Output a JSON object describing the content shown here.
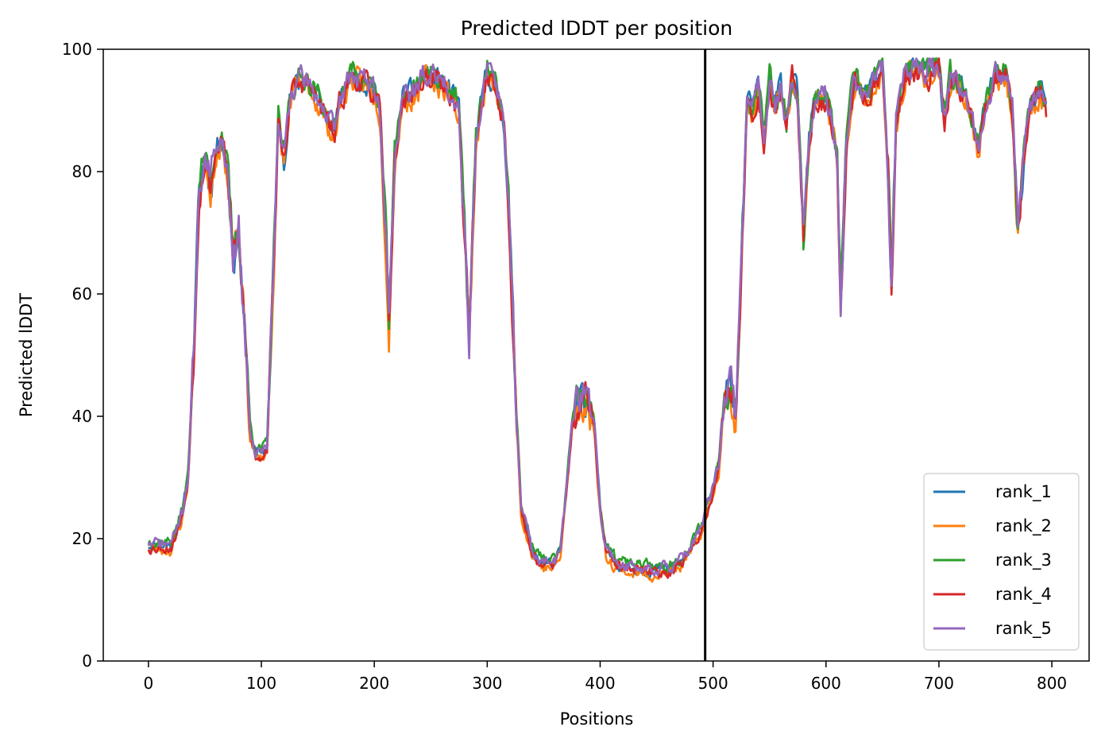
{
  "chart_data": {
    "type": "line",
    "title": "Predicted lDDT per position",
    "xlabel": "Positions",
    "ylabel": "Predicted lDDT",
    "xlim": [
      -40,
      833
    ],
    "ylim": [
      0,
      100
    ],
    "xticks": [
      0,
      100,
      200,
      300,
      400,
      500,
      600,
      700,
      800
    ],
    "yticks": [
      0,
      20,
      40,
      60,
      80,
      100
    ],
    "grid": false,
    "legend_position": "bottom-right",
    "vline": {
      "x": 493,
      "color": "#000000"
    },
    "colors": {
      "rank_1": "#1f77b4",
      "rank_2": "#ff7f0e",
      "rank_3": "#2ca02c",
      "rank_4": "#d62728",
      "rank_5": "#9467bd"
    },
    "base_profile": [
      [
        0,
        19
      ],
      [
        10,
        19
      ],
      [
        20,
        19
      ],
      [
        30,
        24
      ],
      [
        35,
        30
      ],
      [
        40,
        50
      ],
      [
        45,
        78
      ],
      [
        50,
        82
      ],
      [
        55,
        78
      ],
      [
        60,
        84
      ],
      [
        65,
        86
      ],
      [
        70,
        80
      ],
      [
        75,
        66
      ],
      [
        80,
        70
      ],
      [
        85,
        55
      ],
      [
        90,
        38
      ],
      [
        95,
        34
      ],
      [
        100,
        34
      ],
      [
        105,
        35
      ],
      [
        110,
        60
      ],
      [
        115,
        88
      ],
      [
        120,
        82
      ],
      [
        125,
        92
      ],
      [
        130,
        94
      ],
      [
        140,
        95
      ],
      [
        150,
        92
      ],
      [
        155,
        90
      ],
      [
        160,
        88
      ],
      [
        165,
        86
      ],
      [
        170,
        92
      ],
      [
        180,
        96
      ],
      [
        190,
        95
      ],
      [
        200,
        93
      ],
      [
        205,
        90
      ],
      [
        210,
        70
      ],
      [
        213,
        55
      ],
      [
        218,
        82
      ],
      [
        225,
        92
      ],
      [
        235,
        93
      ],
      [
        245,
        96
      ],
      [
        255,
        95
      ],
      [
        265,
        94
      ],
      [
        275,
        90
      ],
      [
        280,
        70
      ],
      [
        284,
        53
      ],
      [
        290,
        85
      ],
      [
        300,
        97
      ],
      [
        310,
        92
      ],
      [
        315,
        88
      ],
      [
        320,
        70
      ],
      [
        325,
        45
      ],
      [
        330,
        25
      ],
      [
        340,
        18
      ],
      [
        350,
        16
      ],
      [
        360,
        16
      ],
      [
        365,
        18
      ],
      [
        370,
        28
      ],
      [
        375,
        38
      ],
      [
        380,
        42
      ],
      [
        385,
        43
      ],
      [
        390,
        42
      ],
      [
        395,
        38
      ],
      [
        400,
        25
      ],
      [
        405,
        18
      ],
      [
        415,
        16
      ],
      [
        430,
        15
      ],
      [
        445,
        15
      ],
      [
        460,
        15
      ],
      [
        470,
        16
      ],
      [
        480,
        18
      ],
      [
        490,
        22
      ],
      [
        495,
        25
      ],
      [
        500,
        28
      ],
      [
        505,
        32
      ],
      [
        510,
        44
      ],
      [
        515,
        45
      ],
      [
        520,
        40
      ],
      [
        525,
        65
      ],
      [
        530,
        92
      ],
      [
        535,
        90
      ],
      [
        540,
        94
      ],
      [
        545,
        85
      ],
      [
        550,
        95
      ],
      [
        555,
        90
      ],
      [
        560,
        94
      ],
      [
        565,
        88
      ],
      [
        570,
        95
      ],
      [
        575,
        92
      ],
      [
        580,
        68
      ],
      [
        585,
        85
      ],
      [
        590,
        92
      ],
      [
        600,
        92
      ],
      [
        605,
        88
      ],
      [
        610,
        82
      ],
      [
        613,
        58
      ],
      [
        618,
        85
      ],
      [
        625,
        95
      ],
      [
        635,
        92
      ],
      [
        645,
        95
      ],
      [
        650,
        96
      ],
      [
        655,
        80
      ],
      [
        658,
        62
      ],
      [
        662,
        88
      ],
      [
        670,
        96
      ],
      [
        680,
        97
      ],
      [
        690,
        96
      ],
      [
        700,
        97
      ],
      [
        705,
        88
      ],
      [
        710,
        95
      ],
      [
        720,
        94
      ],
      [
        725,
        92
      ],
      [
        730,
        88
      ],
      [
        735,
        84
      ],
      [
        740,
        90
      ],
      [
        750,
        96
      ],
      [
        760,
        96
      ],
      [
        765,
        90
      ],
      [
        770,
        70
      ],
      [
        775,
        82
      ],
      [
        780,
        90
      ],
      [
        790,
        94
      ],
      [
        795,
        90
      ]
    ],
    "series": [
      {
        "name": "rank_1",
        "offset": 0.0,
        "seed": 11
      },
      {
        "name": "rank_2",
        "offset": -0.8,
        "seed": 23
      },
      {
        "name": "rank_3",
        "offset": 0.6,
        "seed": 37
      },
      {
        "name": "rank_4",
        "offset": -0.4,
        "seed": 53
      },
      {
        "name": "rank_5",
        "offset": 0.2,
        "seed": 71
      }
    ]
  }
}
